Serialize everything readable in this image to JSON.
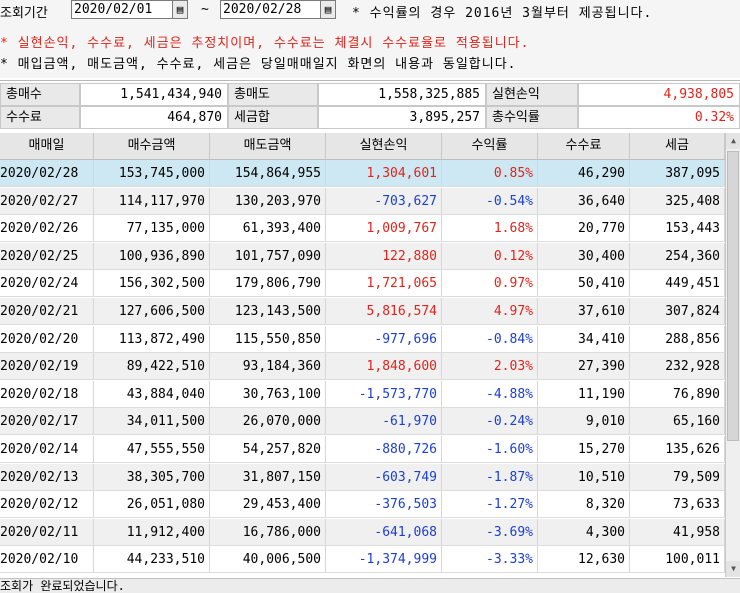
{
  "query": {
    "period_label": "조회기간",
    "start_date": "2020/02/01",
    "end_date": "2020/02/28",
    "tilde": "~",
    "note1": "* 수익률의 경우 2016년 3월부터 제공됩니다.",
    "note2": "* 실현손익, 수수료, 세금은 추정치이며, 수수료는 체결시 수수료율로 적용됩니다.",
    "note3": "* 매입금액, 매도금액, 수수료, 세금은 당일매매일지 화면의 내용과 동일합니다."
  },
  "summary": {
    "total_buy_label": "총매수",
    "total_buy": "1,541,434,940",
    "total_sell_label": "총매도",
    "total_sell": "1,558,325,885",
    "realized_label": "실현손익",
    "realized": "4,938,805",
    "fee_label": "수수료",
    "fee": "464,870",
    "tax_label": "세금합",
    "tax": "3,895,257",
    "return_label": "총수익률",
    "return": "0.32%"
  },
  "table": {
    "headers": [
      "매매일",
      "매수금액",
      "매도금액",
      "실현손익",
      "수익률",
      "수수료",
      "세금"
    ],
    "rows": [
      [
        "2020/02/28",
        "153,745,000",
        "154,864,955",
        "1,304,601",
        "0.85%",
        "46,290",
        "387,095"
      ],
      [
        "2020/02/27",
        "114,117,970",
        "130,203,970",
        "-703,627",
        "-0.54%",
        "36,640",
        "325,408"
      ],
      [
        "2020/02/26",
        "77,135,000",
        "61,393,400",
        "1,009,767",
        "1.68%",
        "20,770",
        "153,443"
      ],
      [
        "2020/02/25",
        "100,936,890",
        "101,757,090",
        "122,880",
        "0.12%",
        "30,400",
        "254,360"
      ],
      [
        "2020/02/24",
        "156,302,500",
        "179,806,790",
        "1,721,065",
        "0.97%",
        "50,410",
        "449,451"
      ],
      [
        "2020/02/21",
        "127,606,500",
        "123,143,500",
        "5,816,574",
        "4.97%",
        "37,610",
        "307,824"
      ],
      [
        "2020/02/20",
        "113,872,490",
        "115,550,850",
        "-977,696",
        "-0.84%",
        "34,410",
        "288,856"
      ],
      [
        "2020/02/19",
        "89,422,510",
        "93,184,360",
        "1,848,600",
        "2.03%",
        "27,390",
        "232,928"
      ],
      [
        "2020/02/18",
        "43,884,040",
        "30,763,100",
        "-1,573,770",
        "-4.88%",
        "11,190",
        "76,890"
      ],
      [
        "2020/02/17",
        "34,011,500",
        "26,070,000",
        "-61,970",
        "-0.24%",
        "9,010",
        "65,160"
      ],
      [
        "2020/02/14",
        "47,555,550",
        "54,257,820",
        "-880,726",
        "-1.60%",
        "15,270",
        "135,626"
      ],
      [
        "2020/02/13",
        "38,305,700",
        "31,807,150",
        "-603,749",
        "-1.87%",
        "10,510",
        "79,509"
      ],
      [
        "2020/02/12",
        "26,051,080",
        "29,453,400",
        "-376,503",
        "-1.27%",
        "8,320",
        "73,633"
      ],
      [
        "2020/02/11",
        "11,912,400",
        "16,786,000",
        "-641,068",
        "-3.69%",
        "4,300",
        "41,958"
      ],
      [
        "2020/02/10",
        "44,233,510",
        "40,006,500",
        "-1,374,999",
        "-3.33%",
        "12,630",
        "100,011"
      ]
    ]
  },
  "status": "조회가 완료되었습니다.",
  "colors": {
    "positive": "#e0241b",
    "negative": "#1c3fd1",
    "selected_row": "#cde8f2"
  },
  "icons": {
    "calendar": "calendar-icon"
  }
}
